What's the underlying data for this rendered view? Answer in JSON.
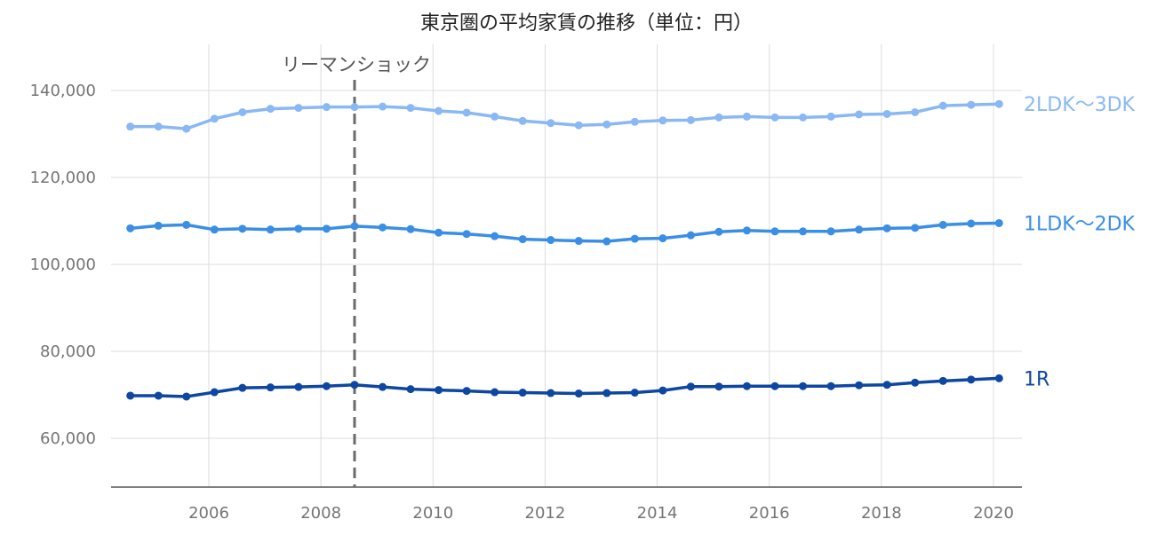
{
  "title": "東京圏の平均家賃の推移（単位：円）",
  "chart_data": {
    "type": "line",
    "title": "東京圏の平均家賃の推移（単位：円）",
    "xlabel": "",
    "ylabel": "",
    "ylim": [
      49000,
      150000
    ],
    "xlim": [
      2004.2,
      2020.5
    ],
    "yticks": [
      60000,
      80000,
      100000,
      120000,
      140000
    ],
    "ytick_labels": [
      "60,000",
      "80,000",
      "100,000",
      "120,000",
      "140,000"
    ],
    "xticks": [
      2006,
      2008,
      2010,
      2012,
      2014,
      2016,
      2018,
      2020
    ],
    "xtick_labels": [
      "2006",
      "2008",
      "2010",
      "2012",
      "2014",
      "2016",
      "2018",
      "2020"
    ],
    "grid": true,
    "legend_position": "inline-right",
    "x": [
      2004.6,
      2005.1,
      2005.6,
      2006.1,
      2006.6,
      2007.1,
      2007.6,
      2008.1,
      2008.6,
      2009.1,
      2009.6,
      2010.1,
      2010.6,
      2011.1,
      2011.6,
      2012.1,
      2012.6,
      2013.1,
      2013.6,
      2014.1,
      2014.6,
      2015.1,
      2015.6,
      2016.1,
      2016.6,
      2017.1,
      2017.6,
      2018.1,
      2018.6,
      2019.1,
      2019.6,
      2020.1
    ],
    "series": [
      {
        "name": "2LDK〜3DK",
        "color": "#8ab8f5",
        "values": [
          131700,
          131700,
          131200,
          133500,
          135000,
          135800,
          136000,
          136200,
          136200,
          136300,
          136000,
          135300,
          134900,
          134000,
          133000,
          132500,
          132000,
          132200,
          132800,
          133100,
          133200,
          133800,
          134000,
          133800,
          133800,
          134000,
          134500,
          134600,
          135000,
          136500,
          136700,
          136900
        ]
      },
      {
        "name": "1LDK〜2DK",
        "color": "#3a8ee6",
        "values": [
          108300,
          108900,
          109100,
          108000,
          108200,
          108000,
          108200,
          108200,
          108800,
          108500,
          108100,
          107300,
          107000,
          106500,
          105800,
          105600,
          105400,
          105300,
          105900,
          106000,
          106700,
          107500,
          107800,
          107600,
          107600,
          107600,
          108000,
          108300,
          108400,
          109100,
          109400,
          109500
        ]
      },
      {
        "name": "1R",
        "color": "#0d47a1",
        "values": [
          69800,
          69800,
          69600,
          70600,
          71600,
          71700,
          71800,
          72000,
          72300,
          71800,
          71300,
          71100,
          70900,
          70600,
          70500,
          70400,
          70300,
          70400,
          70500,
          71000,
          71900,
          71900,
          72000,
          72000,
          72000,
          72000,
          72200,
          72300,
          72800,
          73200,
          73500,
          73800
        ]
      }
    ],
    "annotations": [
      {
        "type": "vline",
        "x": 2008.6,
        "style": "dashed",
        "label": "リーマンショック"
      }
    ]
  }
}
